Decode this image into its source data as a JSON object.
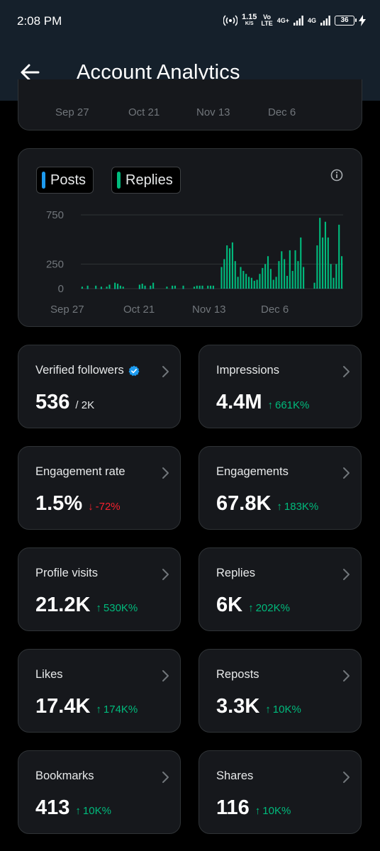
{
  "status": {
    "time": "2:08 PM",
    "speed_value": "1.15",
    "speed_unit": "K/S",
    "vo_top": "Vo",
    "vo_bottom": "LTE",
    "net1": "4G+",
    "net2": "4G",
    "battery": "36"
  },
  "header": {
    "title": "Account Analytics"
  },
  "top_axis": [
    "Sep 27",
    "Oct 21",
    "Nov 13",
    "Dec 6"
  ],
  "legend": [
    {
      "label": "Posts",
      "color": "#1d9bf0"
    },
    {
      "label": "Replies",
      "color": "#00ba7c"
    }
  ],
  "colors": {
    "up": "#00ba7c",
    "down": "#f4212e",
    "accent": "#1d9bf0"
  },
  "chart_data": {
    "type": "bar",
    "x_ticks": [
      "Sep 27",
      "Oct 21",
      "Nov 13",
      "Dec 6"
    ],
    "y_ticks": [
      "750",
      "250",
      "0"
    ],
    "ylim": [
      0,
      750
    ],
    "grid": true,
    "series": [
      {
        "name": "Posts",
        "color": "#1d9bf0",
        "values": [
          8,
          0,
          2,
          0,
          0,
          4,
          0,
          2,
          0,
          0,
          5,
          0,
          2,
          2,
          0,
          0,
          0,
          0,
          0,
          0,
          0,
          2,
          8,
          2,
          0,
          2,
          6,
          0,
          0,
          0,
          0,
          0,
          0,
          3,
          0,
          0,
          0,
          3,
          0,
          0,
          0,
          0,
          0,
          4,
          3,
          0,
          0,
          4,
          3,
          0,
          0,
          6,
          12,
          10,
          8,
          8,
          5,
          6,
          4,
          6,
          8,
          10,
          10,
          12,
          8,
          10,
          6,
          10,
          12,
          8,
          10,
          14,
          8,
          10,
          8,
          12,
          10,
          14,
          10,
          12,
          10,
          10,
          0,
          0,
          0,
          6,
          12,
          10,
          10,
          14,
          10,
          8,
          12,
          10,
          10,
          8
        ]
      },
      {
        "name": "Replies",
        "color": "#00ba7c",
        "values": [
          20,
          0,
          30,
          0,
          0,
          30,
          0,
          20,
          0,
          20,
          40,
          0,
          60,
          50,
          30,
          20,
          0,
          0,
          0,
          0,
          0,
          40,
          50,
          30,
          0,
          30,
          60,
          0,
          0,
          0,
          0,
          20,
          0,
          30,
          30,
          0,
          0,
          30,
          0,
          0,
          0,
          20,
          30,
          30,
          30,
          0,
          30,
          30,
          30,
          0,
          0,
          220,
          300,
          440,
          410,
          470,
          280,
          120,
          220,
          180,
          150,
          120,
          110,
          80,
          90,
          150,
          210,
          250,
          330,
          200,
          90,
          120,
          280,
          380,
          300,
          130,
          390,
          180,
          390,
          280,
          520,
          220,
          0,
          0,
          0,
          60,
          440,
          720,
          520,
          680,
          520,
          250,
          110,
          250,
          650,
          330
        ]
      }
    ]
  },
  "stats": [
    {
      "label": "Verified followers",
      "value": "536",
      "extra": "/ 2K",
      "trend": "none",
      "verified": true
    },
    {
      "label": "Impressions",
      "value": "4.4M",
      "extra": "661K%",
      "trend": "up"
    },
    {
      "label": "Engagement rate",
      "value": "1.5%",
      "extra": "-72%",
      "trend": "down"
    },
    {
      "label": "Engagements",
      "value": "67.8K",
      "extra": "183K%",
      "trend": "up"
    },
    {
      "label": "Profile visits",
      "value": "21.2K",
      "extra": "530K%",
      "trend": "up"
    },
    {
      "label": "Replies",
      "value": "6K",
      "extra": "202K%",
      "trend": "up"
    },
    {
      "label": "Likes",
      "value": "17.4K",
      "extra": "174K%",
      "trend": "up"
    },
    {
      "label": "Reposts",
      "value": "3.3K",
      "extra": "10K%",
      "trend": "up"
    },
    {
      "label": "Bookmarks",
      "value": "413",
      "extra": "10K%",
      "trend": "up"
    },
    {
      "label": "Shares",
      "value": "116",
      "extra": "10K%",
      "trend": "up"
    }
  ],
  "trend_arrows": {
    "up": "↑",
    "down": "↓"
  }
}
